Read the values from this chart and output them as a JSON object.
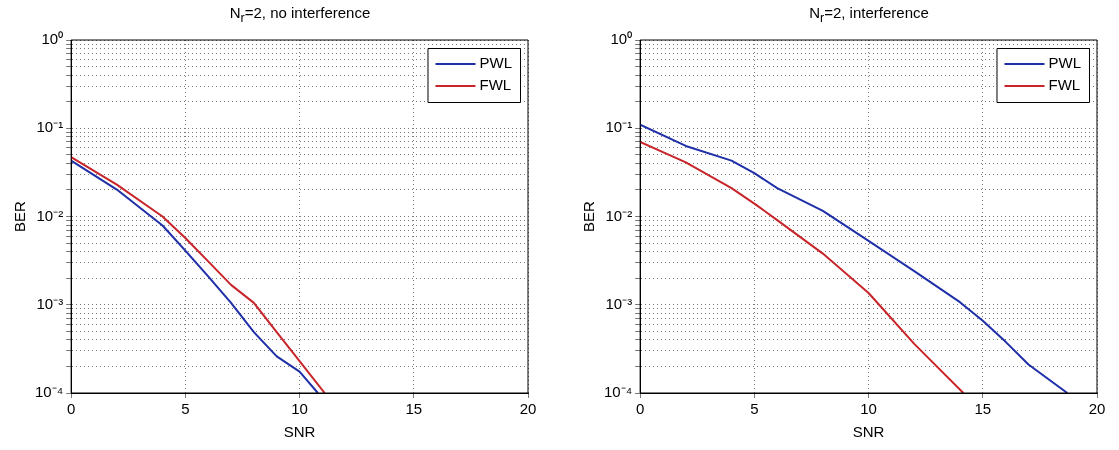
{
  "chart_data": [
    {
      "type": "line",
      "title": "N$_{r}$=2, no interference",
      "xlabel": "SNR",
      "ylabel": "BER",
      "log": "y",
      "grid": true,
      "legend": "top right",
      "marker": "none",
      "line_style": "solid",
      "xlim": [
        0,
        20
      ],
      "xticks": [
        0,
        5,
        10,
        15,
        20
      ],
      "ylim": [
        0.0001,
        1
      ],
      "yticks": [
        {
          "value": 0.0001,
          "label": "10⁻⁴"
        },
        {
          "value": 0.0002,
          "label": null
        },
        {
          "value": 0.0003,
          "label": null
        },
        {
          "value": 0.0004,
          "label": null
        },
        {
          "value": 0.0005,
          "label": null
        },
        {
          "value": 0.0006,
          "label": null
        },
        {
          "value": 0.0007,
          "label": null
        },
        {
          "value": 0.0008,
          "label": null
        },
        {
          "value": 0.0009,
          "label": null
        },
        {
          "value": 0.001,
          "label": "10⁻³"
        },
        {
          "value": 0.002,
          "label": null
        },
        {
          "value": 0.003,
          "label": null
        },
        {
          "value": 0.004,
          "label": null
        },
        {
          "value": 0.005,
          "label": null
        },
        {
          "value": 0.006,
          "label": null
        },
        {
          "value": 0.007,
          "label": null
        },
        {
          "value": 0.008,
          "label": null
        },
        {
          "value": 0.009,
          "label": null
        },
        {
          "value": 0.01,
          "label": "10⁻²"
        },
        {
          "value": 0.02,
          "label": null
        },
        {
          "value": 0.03,
          "label": null
        },
        {
          "value": 0.04,
          "label": null
        },
        {
          "value": 0.05,
          "label": null
        },
        {
          "value": 0.06,
          "label": null
        },
        {
          "value": 0.07,
          "label": null
        },
        {
          "value": 0.08,
          "label": null
        },
        {
          "value": 0.09,
          "label": null
        },
        {
          "value": 0.1,
          "label": "10⁻¹"
        },
        {
          "value": 0.2,
          "label": null
        },
        {
          "value": 0.3,
          "label": null
        },
        {
          "value": 0.4,
          "label": null
        },
        {
          "value": 0.5,
          "label": null
        },
        {
          "value": 0.6,
          "label": null
        },
        {
          "value": 0.7,
          "label": null
        },
        {
          "value": 0.8,
          "label": null
        },
        {
          "value": 0.9,
          "label": null
        },
        {
          "value": 1,
          "label": "10⁰"
        }
      ],
      "series": [
        {
          "name": "PWL",
          "color": "#1f2fa8",
          "x": [
            0,
            2,
            4,
            5,
            6,
            7,
            8,
            9,
            10,
            10.8
          ],
          "values": [
            0.043,
            0.0202,
            0.0079,
            0.0041,
            0.0021,
            0.00105,
            0.00049,
            0.00026,
            0.000175,
            0.0001
          ]
        },
        {
          "name": "FWL",
          "color": "#c8252b",
          "x": [
            0,
            2,
            4,
            5,
            6,
            7,
            8,
            9,
            10,
            11.1
          ],
          "values": [
            0.047,
            0.023,
            0.01,
            0.0057,
            0.0031,
            0.00168,
            0.00105,
            0.00049,
            0.00023,
            0.0001
          ]
        }
      ]
    },
    {
      "type": "line",
      "title": "N$_{r}$=2, interference",
      "xlabel": "SNR",
      "ylabel": "BER",
      "log": "y",
      "grid": true,
      "legend": "top right",
      "marker": "none",
      "line_style": "solid",
      "xlim": [
        0,
        20
      ],
      "xticks": [
        0,
        5,
        10,
        15,
        20
      ],
      "ylim": [
        0.0001,
        1
      ],
      "yticks": [
        {
          "value": 0.0001,
          "label": "10⁻⁴"
        },
        {
          "value": 0.0002,
          "label": null
        },
        {
          "value": 0.0003,
          "label": null
        },
        {
          "value": 0.0004,
          "label": null
        },
        {
          "value": 0.0005,
          "label": null
        },
        {
          "value": 0.0006,
          "label": null
        },
        {
          "value": 0.0007,
          "label": null
        },
        {
          "value": 0.0008,
          "label": null
        },
        {
          "value": 0.0009,
          "label": null
        },
        {
          "value": 0.001,
          "label": "10⁻³"
        },
        {
          "value": 0.002,
          "label": null
        },
        {
          "value": 0.003,
          "label": null
        },
        {
          "value": 0.004,
          "label": null
        },
        {
          "value": 0.005,
          "label": null
        },
        {
          "value": 0.006,
          "label": null
        },
        {
          "value": 0.007,
          "label": null
        },
        {
          "value": 0.008,
          "label": null
        },
        {
          "value": 0.009,
          "label": null
        },
        {
          "value": 0.01,
          "label": "10⁻²"
        },
        {
          "value": 0.02,
          "label": null
        },
        {
          "value": 0.03,
          "label": null
        },
        {
          "value": 0.04,
          "label": null
        },
        {
          "value": 0.05,
          "label": null
        },
        {
          "value": 0.06,
          "label": null
        },
        {
          "value": 0.07,
          "label": null
        },
        {
          "value": 0.08,
          "label": null
        },
        {
          "value": 0.09,
          "label": null
        },
        {
          "value": 0.1,
          "label": "10⁻¹"
        },
        {
          "value": 0.2,
          "label": null
        },
        {
          "value": 0.3,
          "label": null
        },
        {
          "value": 0.4,
          "label": null
        },
        {
          "value": 0.5,
          "label": null
        },
        {
          "value": 0.6,
          "label": null
        },
        {
          "value": 0.7,
          "label": null
        },
        {
          "value": 0.8,
          "label": null
        },
        {
          "value": 0.9,
          "label": null
        },
        {
          "value": 1,
          "label": "10⁰"
        }
      ],
      "series": [
        {
          "name": "PWL",
          "color": "#1f2fa8",
          "x": [
            0,
            2,
            4,
            5,
            6,
            8,
            10,
            12,
            14,
            15,
            16,
            17,
            18.7
          ],
          "values": [
            0.11,
            0.063,
            0.043,
            0.031,
            0.021,
            0.0116,
            0.0053,
            0.0024,
            0.00107,
            0.00066,
            0.00038,
            0.00021,
            0.0001
          ]
        },
        {
          "name": "FWL",
          "color": "#c8252b",
          "x": [
            0,
            2,
            4,
            5,
            6,
            8,
            10,
            12,
            14.15
          ],
          "values": [
            0.07,
            0.041,
            0.021,
            0.014,
            0.0091,
            0.0038,
            0.00136,
            0.00036,
            0.0001
          ]
        }
      ]
    }
  ]
}
